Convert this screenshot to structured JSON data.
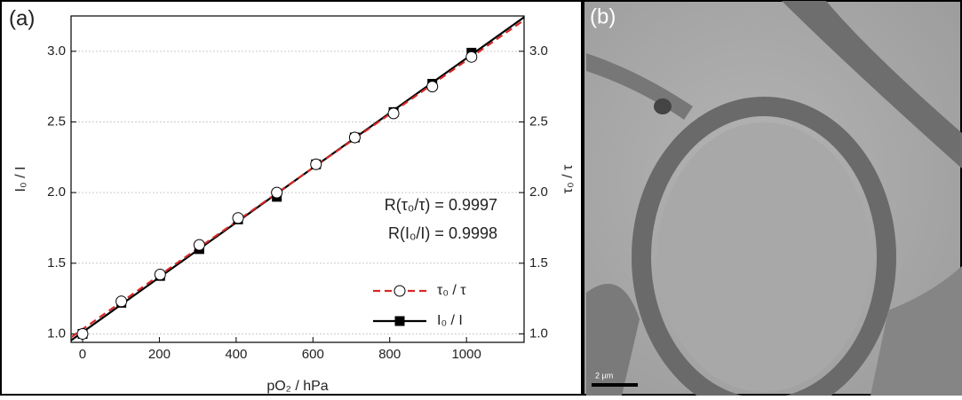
{
  "chart_data": {
    "type": "scatter",
    "panel_label": "(a)",
    "xlabel": "pO₂ / hPa",
    "ylabel": "I₀ / I",
    "y2label": "τ₀ / τ",
    "x": [
      0,
      101,
      202,
      304,
      405,
      506,
      608,
      709,
      810,
      911,
      1013
    ],
    "series": [
      {
        "name": "τ₀ / τ",
        "color": "#d62728",
        "marker": "circle",
        "axis": "y2",
        "values": [
          1.0,
          1.23,
          1.42,
          1.63,
          1.82,
          2.0,
          2.2,
          2.39,
          2.56,
          2.75,
          2.96
        ]
      },
      {
        "name": "I₀ / I",
        "color": "#000000",
        "marker": "square",
        "values": [
          1.0,
          1.22,
          1.41,
          1.6,
          1.81,
          1.97,
          2.2,
          2.39,
          2.57,
          2.77,
          2.99
        ]
      }
    ],
    "xlim": [
      -30,
      1150
    ],
    "xticks": [
      0,
      200,
      400,
      600,
      800,
      1000
    ],
    "ylim": [
      0.94,
      3.25
    ],
    "yticks": [
      {
        "value": 1,
        "label": "1.0"
      },
      1.5,
      {
        "value": 2,
        "label": "2.0"
      },
      2.5,
      {
        "value": 3,
        "label": "3.0"
      }
    ],
    "y2lim": [
      0.94,
      3.25
    ],
    "y2ticks": [
      {
        "value": 1,
        "label": "1.0"
      },
      1.5,
      {
        "value": 2,
        "label": "2.0"
      },
      2.5,
      {
        "value": 3,
        "label": "3.0"
      }
    ],
    "grid": true,
    "legend": "lower right",
    "annotations": [
      "R(τ₀/τ) = 0.9997",
      "R(I₀/I)  = 0.9998"
    ]
  },
  "image": {
    "panel_label": "(b)",
    "scale_bar": "2 µm"
  }
}
